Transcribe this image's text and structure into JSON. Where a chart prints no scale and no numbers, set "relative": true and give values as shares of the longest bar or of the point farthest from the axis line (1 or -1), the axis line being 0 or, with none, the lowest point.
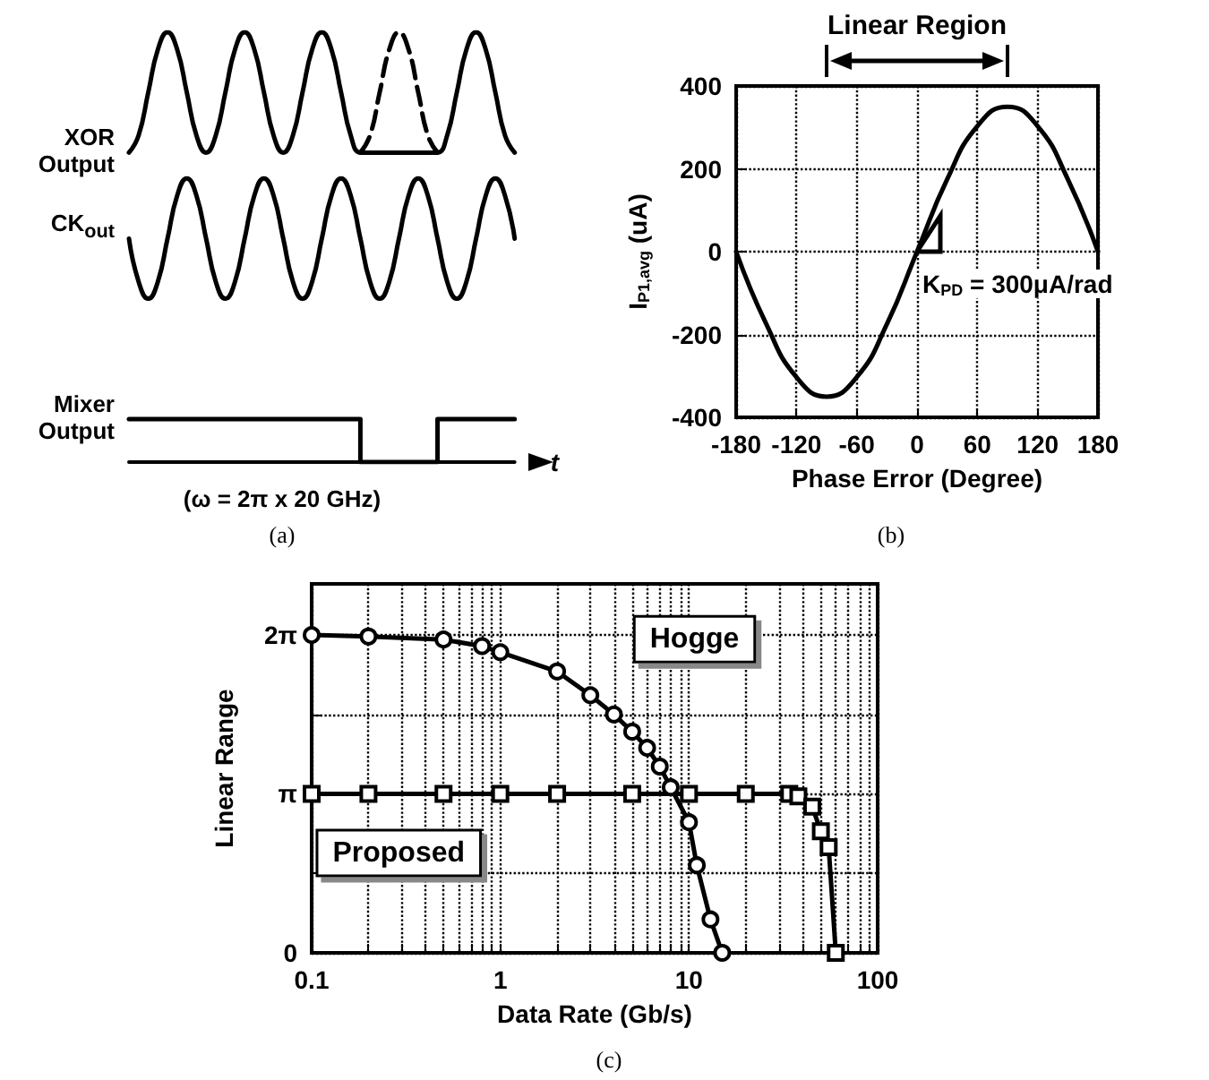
{
  "chart_data": [
    {
      "type": "line",
      "relative": true,
      "xlabel": "t",
      "categories": [
        null,
        null,
        null,
        null,
        null,
        null,
        null,
        null,
        null,
        null,
        null,
        null,
        null,
        null,
        null,
        null,
        null,
        null,
        null,
        null,
        null,
        null,
        null,
        null,
        null,
        null,
        null,
        null,
        null,
        null,
        null,
        null,
        null,
        null,
        null,
        null,
        null,
        null,
        null,
        null,
        null
      ],
      "series": [
        {
          "name": "XOR Output",
          "color": "#000000",
          "values": [
            0.72,
            0.76,
            0.86,
            0.96,
            1,
            0.96,
            0.86,
            0.76,
            0.72,
            0.76,
            0.86,
            0.96,
            1,
            0.96,
            0.86,
            0.76,
            0.72,
            0.76,
            0.86,
            0.96,
            1,
            0.96,
            0.86,
            0.76,
            0.72,
            0.72,
            0.72,
            0.72,
            0.72,
            0.72,
            0.72,
            0.72,
            0.72,
            0.76,
            0.86,
            0.96,
            1,
            0.96,
            0.86,
            0.76,
            0.72
          ]
        },
        {
          "color": "#000000",
          "line_style": "dashed",
          "values": [
            null,
            null,
            null,
            null,
            null,
            null,
            null,
            null,
            null,
            null,
            null,
            null,
            null,
            null,
            null,
            null,
            null,
            null,
            null,
            null,
            null,
            null,
            null,
            null,
            0.72,
            0.76,
            0.86,
            0.96,
            1,
            0.96,
            0.86,
            0.76,
            0.72,
            null,
            null,
            null,
            null,
            null,
            null,
            null,
            null
          ]
        },
        {
          "name": "CK$_{out}$",
          "color": "#000000",
          "values": [
            0.52,
            0.42,
            0.38,
            0.42,
            0.52,
            0.62,
            0.66,
            0.62,
            0.52,
            0.42,
            0.38,
            0.42,
            0.52,
            0.62,
            0.66,
            0.62,
            0.52,
            0.42,
            0.38,
            0.42,
            0.52,
            0.62,
            0.66,
            0.62,
            0.52,
            0.42,
            0.38,
            0.42,
            0.52,
            0.62,
            0.66,
            0.62,
            0.52,
            0.42,
            0.38,
            0.42,
            0.52,
            0.62,
            0.66,
            0.62,
            0.52
          ]
        },
        {
          "name": "Mixer Output",
          "type": "step",
          "color": "#000000",
          "values": [
            0.1,
            0.1,
            0.1,
            0.1,
            0.1,
            0.1,
            0.1,
            0.1,
            0.1,
            0.1,
            0.1,
            0.1,
            0.1,
            0.1,
            0.1,
            0.1,
            0.1,
            0.1,
            0.1,
            0.1,
            0.1,
            0.1,
            0.1,
            0.1,
            0,
            0,
            0,
            0,
            0,
            0,
            0,
            0,
            0.1,
            0.1,
            0.1,
            0.1,
            0.1,
            0.1,
            0.1,
            0.1,
            0.1
          ]
        }
      ],
      "annotations": [
        "(ω = 2π x 20 GHz)",
        "(a)"
      ]
    },
    {
      "type": "line",
      "xlabel": "Phase Error (Degree)",
      "ylabel": "I$_{P1,avg}$ (uA)",
      "x": [
        -180,
        -150,
        -120,
        -90,
        -60,
        -30,
        0,
        30,
        60,
        90,
        120,
        150,
        180
      ],
      "series": [
        {
          "color": "#000000",
          "values": [
            0,
            -175,
            -303,
            -350,
            -303,
            -175,
            0,
            175,
            303,
            350,
            303,
            175,
            0
          ]
        }
      ],
      "xlim": [
        -180,
        180
      ],
      "xticks": [
        -180,
        -120,
        -60,
        0,
        60,
        120,
        180
      ],
      "ylim": [
        -400,
        400
      ],
      "yticks": [
        -400,
        -200,
        0,
        200,
        400
      ],
      "grid": true,
      "annotations": [
        "Linear Region",
        {
          "text": "K$_{PD}$ = 300μA/rad",
          "x": 0,
          "y": 0
        },
        "(b)"
      ]
    },
    {
      "type": "line",
      "xlabel": "Data Rate (Gb/s)",
      "ylabel": "Linear Range",
      "log": "x",
      "series": [
        {
          "name": "Hogge",
          "color": "#000000",
          "marker": "circle",
          "x": [
            0.1,
            0.2,
            0.5,
            0.8,
            1,
            2,
            3,
            4,
            5,
            6,
            7,
            8,
            10,
            11,
            13,
            15
          ],
          "values": [
            6.28,
            6.25,
            6.19,
            6.06,
            5.94,
            5.56,
            5.09,
            4.71,
            4.37,
            4.05,
            3.68,
            3.27,
            2.58,
            1.73,
            0.66,
            0
          ]
        },
        {
          "name": "Proposed",
          "color": "#000000",
          "marker": "square",
          "x": [
            0.1,
            0.2,
            0.5,
            1,
            2,
            5,
            10,
            20,
            34,
            38,
            45,
            50,
            55,
            60
          ],
          "values": [
            3.14,
            3.14,
            3.14,
            3.14,
            3.14,
            3.14,
            3.14,
            3.14,
            3.14,
            3.09,
            2.89,
            2.4,
            2.09,
            0
          ]
        }
      ],
      "xlim": [
        0.1,
        100
      ],
      "xticks": [
        0.1,
        {
          "value": 0.2,
          "label": null
        },
        {
          "value": 0.3,
          "label": null
        },
        {
          "value": 0.4,
          "label": null
        },
        {
          "value": 0.5,
          "label": null
        },
        {
          "value": 0.6,
          "label": null
        },
        {
          "value": 0.7,
          "label": null
        },
        {
          "value": 0.8,
          "label": null
        },
        {
          "value": 0.9,
          "label": null
        },
        1,
        {
          "value": 2,
          "label": null
        },
        {
          "value": 3,
          "label": null
        },
        {
          "value": 4,
          "label": null
        },
        {
          "value": 5,
          "label": null
        },
        {
          "value": 6,
          "label": null
        },
        {
          "value": 7,
          "label": null
        },
        {
          "value": 8,
          "label": null
        },
        {
          "value": 9,
          "label": null
        },
        10,
        {
          "value": 20,
          "label": null
        },
        {
          "value": 30,
          "label": null
        },
        {
          "value": 40,
          "label": null
        },
        {
          "value": 50,
          "label": null
        },
        {
          "value": 60,
          "label": null
        },
        {
          "value": 70,
          "label": null
        },
        {
          "value": 80,
          "label": null
        },
        {
          "value": 90,
          "label": null
        },
        100
      ],
      "ylim": [
        0,
        7.29
      ],
      "yticks": [
        0,
        {
          "value": 1.571,
          "label": null
        },
        {
          "value": 3.1416,
          "label": "π"
        },
        {
          "value": 4.712,
          "label": null
        },
        {
          "value": 6.283,
          "label": "2π"
        }
      ],
      "grid": true,
      "annotations": [
        "(c)"
      ]
    }
  ]
}
